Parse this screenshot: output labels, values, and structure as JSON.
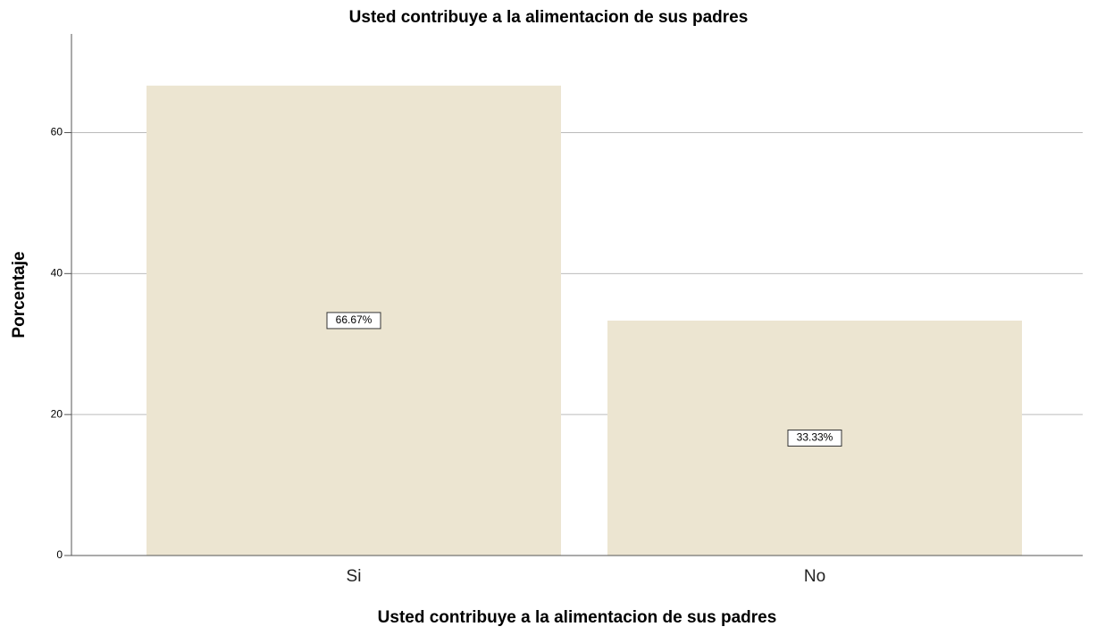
{
  "chart_data": {
    "type": "bar",
    "title": "Usted contribuye a la alimentacion de sus padres",
    "x_label": "Usted contribuye a la alimentacion de sus padres",
    "y_label": "Porcentaje",
    "categories": [
      "Si",
      "No"
    ],
    "values": [
      66.67,
      33.33
    ],
    "value_labels": [
      "66.67%",
      "33.33%"
    ],
    "color": "#ece5d1",
    "ylim": [
      0,
      74
    ],
    "yticks": [
      0,
      20,
      40,
      60
    ],
    "grid": true
  }
}
